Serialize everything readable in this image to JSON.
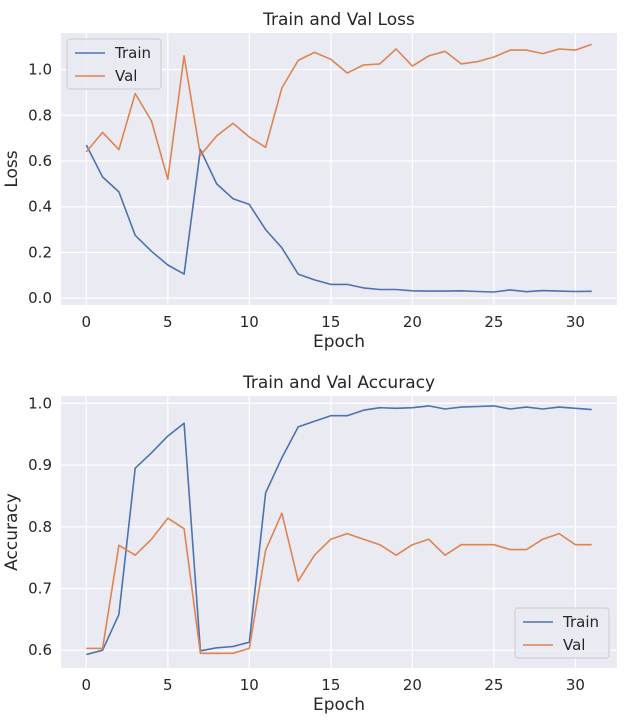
{
  "colors": {
    "train": "#4c72b0",
    "val": "#dd8452",
    "axes_bg": "#eaeaf2",
    "grid": "#ffffff"
  },
  "chart_data": [
    {
      "type": "line",
      "title": "Train and Val Loss",
      "xlabel": "Epoch",
      "ylabel": "Loss",
      "xlim": [
        -1.55,
        32.55
      ],
      "ylim": [
        -0.03,
        1.16
      ],
      "xticks": [
        0,
        5,
        10,
        15,
        20,
        25,
        30
      ],
      "yticks": [
        0.0,
        0.2,
        0.4,
        0.6,
        0.8,
        1.0
      ],
      "ytick_labels": [
        "0.0",
        "0.2",
        "0.4",
        "0.6",
        "0.8",
        "1.0"
      ],
      "legend_position": "top-left",
      "grid": true,
      "x": [
        0,
        1,
        2,
        3,
        4,
        5,
        6,
        7,
        8,
        9,
        10,
        11,
        12,
        13,
        14,
        15,
        16,
        17,
        18,
        19,
        20,
        21,
        22,
        23,
        24,
        25,
        26,
        27,
        28,
        29,
        30,
        31
      ],
      "series": [
        {
          "name": "Train",
          "color": "#4c72b0",
          "values": [
            0.67,
            0.53,
            0.465,
            0.275,
            0.205,
            0.145,
            0.105,
            0.65,
            0.5,
            0.435,
            0.41,
            0.3,
            0.22,
            0.105,
            0.08,
            0.06,
            0.06,
            0.045,
            0.038,
            0.038,
            0.032,
            0.031,
            0.031,
            0.032,
            0.029,
            0.027,
            0.036,
            0.028,
            0.033,
            0.031,
            0.029,
            0.03
          ]
        },
        {
          "name": "Val",
          "color": "#dd8452",
          "values": [
            0.64,
            0.725,
            0.65,
            0.895,
            0.775,
            0.52,
            1.06,
            0.625,
            0.71,
            0.765,
            0.705,
            0.66,
            0.92,
            1.04,
            1.075,
            1.045,
            0.985,
            1.02,
            1.025,
            1.09,
            1.015,
            1.06,
            1.08,
            1.025,
            1.035,
            1.055,
            1.085,
            1.085,
            1.07,
            1.09,
            1.085,
            1.11
          ]
        }
      ]
    },
    {
      "type": "line",
      "title": "Train and Val Accuracy",
      "xlabel": "Epoch",
      "ylabel": "Accuracy",
      "xlim": [
        -1.55,
        32.55
      ],
      "ylim": [
        0.5712,
        1.012
      ],
      "xticks": [
        0,
        5,
        10,
        15,
        20,
        25,
        30
      ],
      "yticks": [
        0.6,
        0.7,
        0.8,
        0.9,
        1.0
      ],
      "ytick_labels": [
        "0.6",
        "0.7",
        "0.8",
        "0.9",
        "1.0"
      ],
      "legend_position": "bottom-right",
      "grid": true,
      "x": [
        0,
        1,
        2,
        3,
        4,
        5,
        6,
        7,
        8,
        9,
        10,
        11,
        12,
        13,
        14,
        15,
        16,
        17,
        18,
        19,
        20,
        21,
        22,
        23,
        24,
        25,
        26,
        27,
        28,
        29,
        30,
        31
      ],
      "series": [
        {
          "name": "Train",
          "color": "#4c72b0",
          "values": [
            0.593,
            0.6,
            0.658,
            0.895,
            0.92,
            0.947,
            0.968,
            0.599,
            0.604,
            0.606,
            0.613,
            0.855,
            0.912,
            0.962,
            0.971,
            0.98,
            0.98,
            0.989,
            0.993,
            0.992,
            0.993,
            0.996,
            0.991,
            0.994,
            0.995,
            0.996,
            0.991,
            0.994,
            0.991,
            0.994,
            0.992,
            0.99
          ]
        },
        {
          "name": "Val",
          "color": "#dd8452",
          "values": [
            0.603,
            0.603,
            0.77,
            0.754,
            0.78,
            0.814,
            0.797,
            0.595,
            0.595,
            0.595,
            0.603,
            0.762,
            0.822,
            0.712,
            0.754,
            0.78,
            0.789,
            0.78,
            0.771,
            0.754,
            0.771,
            0.78,
            0.754,
            0.771,
            0.771,
            0.771,
            0.763,
            0.763,
            0.78,
            0.789,
            0.771,
            0.771
          ]
        }
      ]
    }
  ]
}
